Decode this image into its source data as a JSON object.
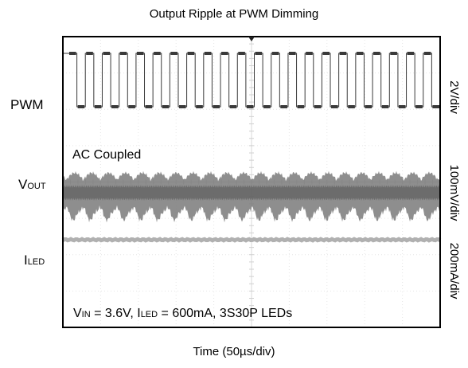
{
  "chart_data": {
    "type": "oscilloscope",
    "title": "Output Ripple at PWM Dimming",
    "xlabel": "Time (50µs/div)",
    "channels": [
      {
        "label": "PWM",
        "scale": "2V/div",
        "waveform": "square",
        "cycles": 22,
        "color": "#3a3a3a"
      },
      {
        "label_main": "V",
        "label_sub": "OUT",
        "scale": "100mV/div",
        "waveform": "ripple",
        "color": "#7a7a7a"
      },
      {
        "label_main": "I",
        "label_sub": "LED",
        "scale": "200mA/div",
        "waveform": "flat",
        "color": "#b0b0b0"
      }
    ],
    "annotations": {
      "coupling": "AC Coupled",
      "conditions": [
        {
          "text": "V",
          "sub": "IN"
        },
        {
          "text": " = 3.6V, I",
          "sub": "LED"
        },
        {
          "text": " = 600mA, 3S30P LEDs",
          "sub": ""
        }
      ]
    },
    "divisions": {
      "x": 10,
      "y": 8
    },
    "grid": true
  }
}
